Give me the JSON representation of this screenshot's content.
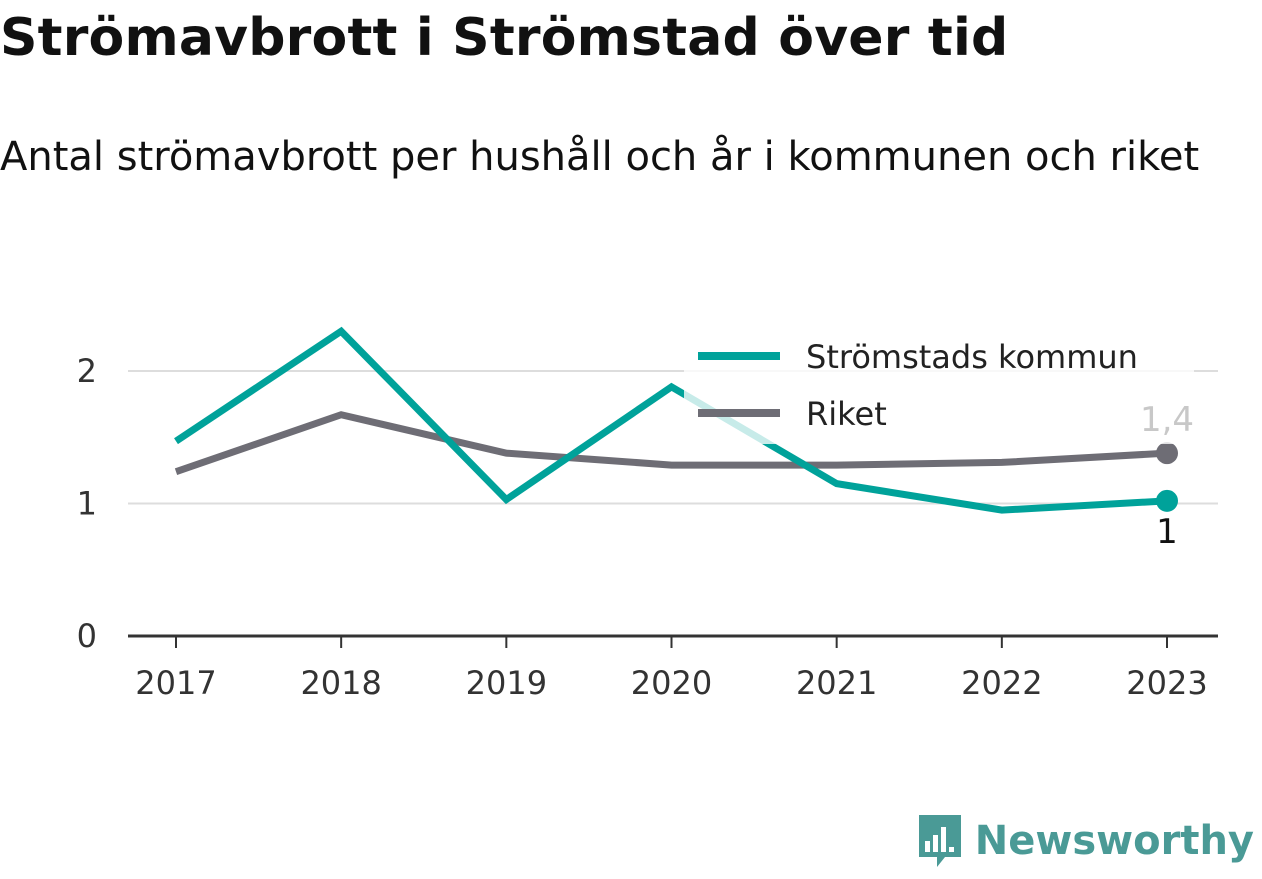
{
  "header": {
    "title": "Strömavbrott i Strömstad över tid",
    "subtitle": "Antal strömavbrott per hushåll och år i kommunen och riket"
  },
  "brand": {
    "name": "Newsworthy",
    "icon": "bar-chart-logo-icon",
    "color": "#4a9a96"
  },
  "chart_data": {
    "type": "line",
    "categories": [
      "2017",
      "2018",
      "2019",
      "2020",
      "2021",
      "2022",
      "2023"
    ],
    "ylim": [
      0,
      2.4
    ],
    "yticks": [
      0,
      1,
      2
    ],
    "grid": true,
    "legend_position": "top-right",
    "series": [
      {
        "name": "Strömstads kommun",
        "color": "#00a29a",
        "values": [
          1.47,
          2.3,
          1.03,
          1.88,
          1.15,
          0.95,
          1.02
        ],
        "end_label": "1"
      },
      {
        "name": "Riket",
        "color": "#6e6d75",
        "values": [
          1.24,
          1.67,
          1.38,
          1.29,
          1.29,
          1.31,
          1.38
        ],
        "end_label": "1,4"
      }
    ]
  }
}
